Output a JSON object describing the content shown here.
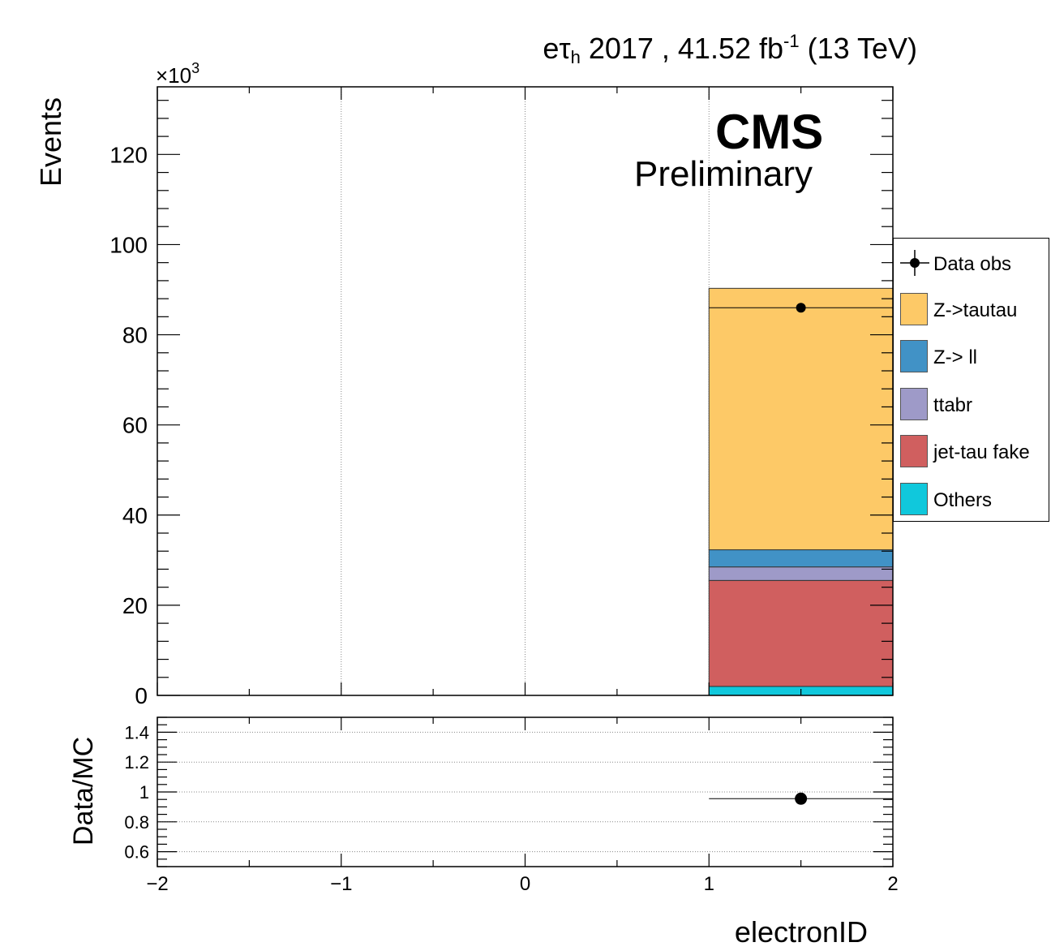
{
  "header": {
    "lumi_prefix": "eτ",
    "lumi_sub": "h",
    "lumi_mid": " 2017 , 41.52 fb",
    "lumi_sup": "-1",
    "lumi_suffix": " (13 TeV)",
    "experiment": "CMS",
    "status": "Preliminary"
  },
  "chart_data": [
    {
      "type": "bar",
      "stacked": true,
      "xlabel": "electronID",
      "ylabel": "Events",
      "y_multiplier": "×10",
      "y_multiplier_exp": "3",
      "xlim": [
        -2,
        2
      ],
      "ylim": [
        0,
        135000
      ],
      "x_ticks": [
        -2,
        -1,
        0,
        1,
        2
      ],
      "x_tick_labels": [
        "−2",
        "−1",
        "0",
        "1",
        "2"
      ],
      "y_ticks": [
        0,
        20,
        40,
        60,
        80,
        100,
        120
      ],
      "y_tick_labels": [
        "0",
        "20",
        "40",
        "60",
        "80",
        "100",
        "120"
      ],
      "grid": "x",
      "bins": [
        [
          1,
          2
        ]
      ],
      "series": [
        {
          "name": "Others",
          "color": "#10c8dc",
          "values": [
            2000
          ]
        },
        {
          "name": "jet-tau fake",
          "color": "#d05f5f",
          "values": [
            23500
          ]
        },
        {
          "name": "ttabr",
          "color": "#9e9ac8",
          "values": [
            3000
          ]
        },
        {
          "name": "Z-> ll",
          "color": "#4192c6",
          "values": [
            3800
          ]
        },
        {
          "name": "Z->tautau",
          "color": "#fdc967",
          "values": [
            58000
          ]
        }
      ],
      "data": {
        "name": "Data obs",
        "x": [
          1.5
        ],
        "y": [
          86000
        ],
        "xerr": [
          0.5
        ]
      },
      "legend": {
        "placement": "right",
        "entries": [
          "Data obs",
          "Z->tautau",
          "Z-> ll",
          "ttabr",
          "jet-tau fake",
          "Others"
        ]
      }
    },
    {
      "type": "scatter",
      "xlabel": "electronID",
      "ylabel": "Data/MC",
      "xlim": [
        -2,
        2
      ],
      "ylim": [
        0.5,
        1.5
      ],
      "x_ticks": [
        -2,
        -1,
        0,
        1,
        2
      ],
      "x_tick_labels": [
        "−2",
        "−1",
        "0",
        "1",
        "2"
      ],
      "y_ticks": [
        0.6,
        0.8,
        1.0,
        1.2,
        1.4
      ],
      "y_tick_labels": [
        "0.6",
        "0.8",
        "1",
        "1.2",
        "1.4"
      ],
      "grid": "y",
      "points": {
        "x": [
          1.5
        ],
        "y": [
          0.955
        ],
        "xerr": [
          0.5
        ]
      }
    }
  ]
}
